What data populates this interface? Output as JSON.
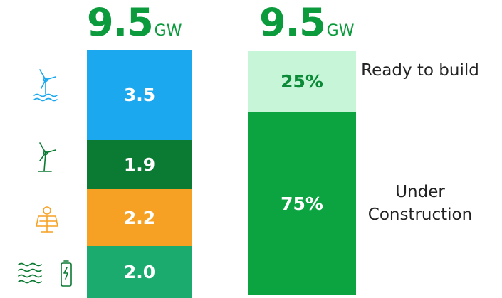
{
  "chart_data": [
    {
      "type": "stacked_bar",
      "total": 9.5,
      "unit": "GW",
      "values": [
        3.5,
        1.9,
        2.2,
        2.0
      ],
      "value_labels": [
        "3.5",
        "1.9",
        "2.2",
        "2.0"
      ],
      "colors": [
        "#1ba8ee",
        "#0b7a33",
        "#f6a124",
        "#1bab6f"
      ],
      "label_colors": [
        "#ffffff",
        "#ffffff",
        "#ffffff",
        "#ffffff"
      ]
    },
    {
      "type": "stacked_bar",
      "total": 9.5,
      "unit": "GW",
      "categories": [
        "Ready to build",
        "Under Construction"
      ],
      "values": [
        25,
        75
      ],
      "value_labels": [
        "25%",
        "75%"
      ],
      "colors": [
        "#c6f5d8",
        "#0ca441"
      ],
      "label_colors": [
        "#0b8a38",
        "#ffffff"
      ]
    }
  ]
}
